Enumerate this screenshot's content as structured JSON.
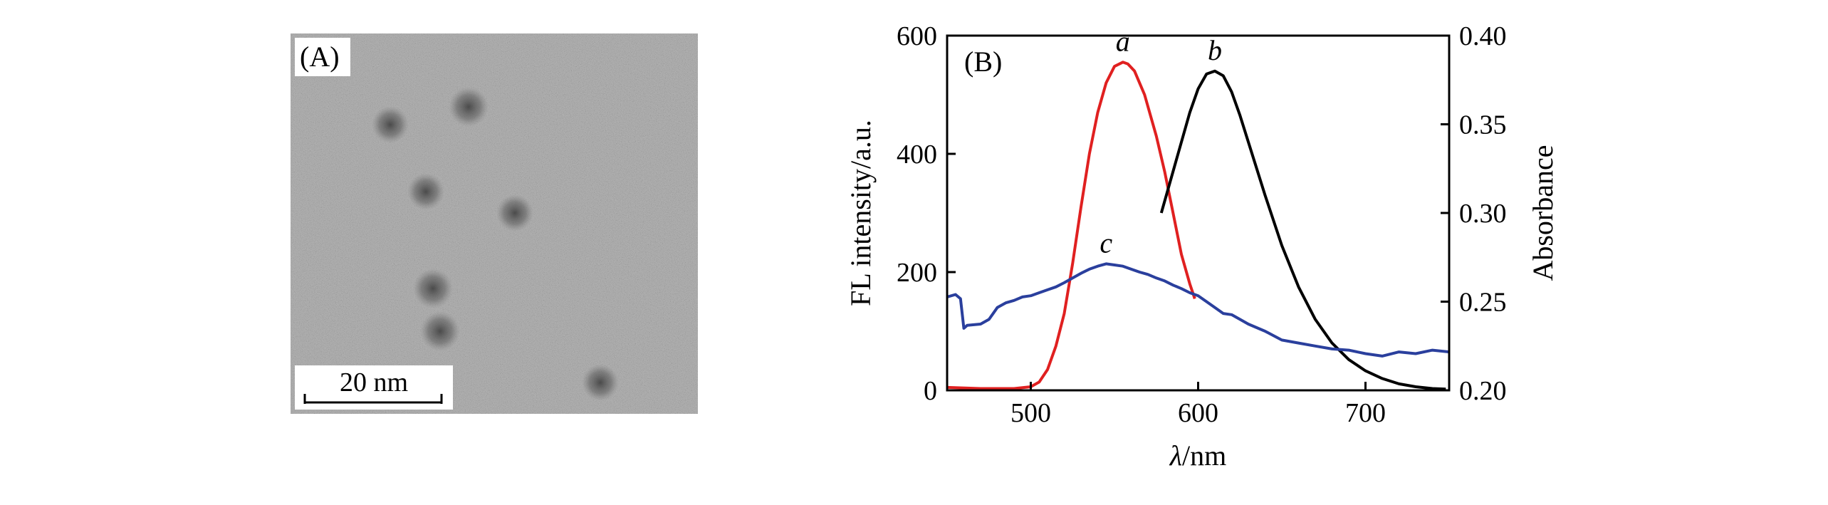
{
  "panel_a": {
    "label": "(A)",
    "scale_bar_label": "20 nm",
    "image_description_icon": "tem-micrograph-icon"
  },
  "chart_data": {
    "type": "line",
    "panel_label": "(B)",
    "xlabel_symbol": "λ",
    "xlabel_unit": "/nm",
    "ylabel": "FL intensity/a.u.",
    "y2label": "Absorbance",
    "xlim": [
      450,
      750
    ],
    "ylim": [
      0,
      600
    ],
    "y2lim": [
      0.2,
      0.4
    ],
    "xticks": [
      500,
      600,
      700
    ],
    "yticks": [
      0,
      200,
      400,
      600
    ],
    "y2ticks": [
      "0.20",
      "0.25",
      "0.30",
      "0.35",
      "0.40"
    ],
    "grid": false,
    "series": [
      {
        "label": "a",
        "axis": "left",
        "color": "#e02020",
        "x": [
          450,
          470,
          490,
          500,
          505,
          510,
          515,
          520,
          525,
          530,
          535,
          540,
          545,
          550,
          555,
          558,
          562,
          568,
          575,
          580,
          585,
          590,
          595,
          598
        ],
        "y": [
          5,
          3,
          3,
          6,
          14,
          35,
          75,
          130,
          215,
          310,
          400,
          470,
          520,
          548,
          555,
          552,
          540,
          500,
          430,
          370,
          300,
          230,
          180,
          155
        ]
      },
      {
        "label": "b",
        "axis": "left",
        "color": "#000000",
        "x": [
          578,
          582,
          588,
          595,
          600,
          605,
          610,
          615,
          620,
          625,
          630,
          640,
          650,
          660,
          670,
          680,
          690,
          700,
          710,
          720,
          730,
          740,
          748
        ],
        "y": [
          300,
          340,
          400,
          470,
          510,
          535,
          540,
          532,
          505,
          465,
          420,
          330,
          245,
          175,
          120,
          80,
          52,
          33,
          20,
          11,
          6,
          3,
          2
        ]
      },
      {
        "label": "c",
        "axis": "left",
        "color": "#2a3f9d",
        "x": [
          450,
          455,
          458,
          460,
          462,
          470,
          475,
          480,
          485,
          490,
          495,
          500,
          505,
          510,
          515,
          520,
          525,
          530,
          535,
          540,
          545,
          550,
          555,
          560,
          565,
          570,
          575,
          580,
          585,
          590,
          595,
          600,
          605,
          610,
          615,
          620,
          625,
          630,
          640,
          650,
          660,
          670,
          680,
          690,
          700,
          710,
          720,
          730,
          740,
          750
        ],
        "y": [
          158,
          162,
          155,
          105,
          110,
          112,
          120,
          140,
          148,
          152,
          158,
          160,
          165,
          170,
          175,
          182,
          190,
          198,
          205,
          210,
          214,
          212,
          210,
          205,
          200,
          196,
          190,
          185,
          178,
          172,
          165,
          160,
          150,
          140,
          130,
          128,
          120,
          112,
          100,
          85,
          80,
          75,
          70,
          68,
          62,
          58,
          65,
          62,
          68,
          65
        ]
      }
    ]
  }
}
